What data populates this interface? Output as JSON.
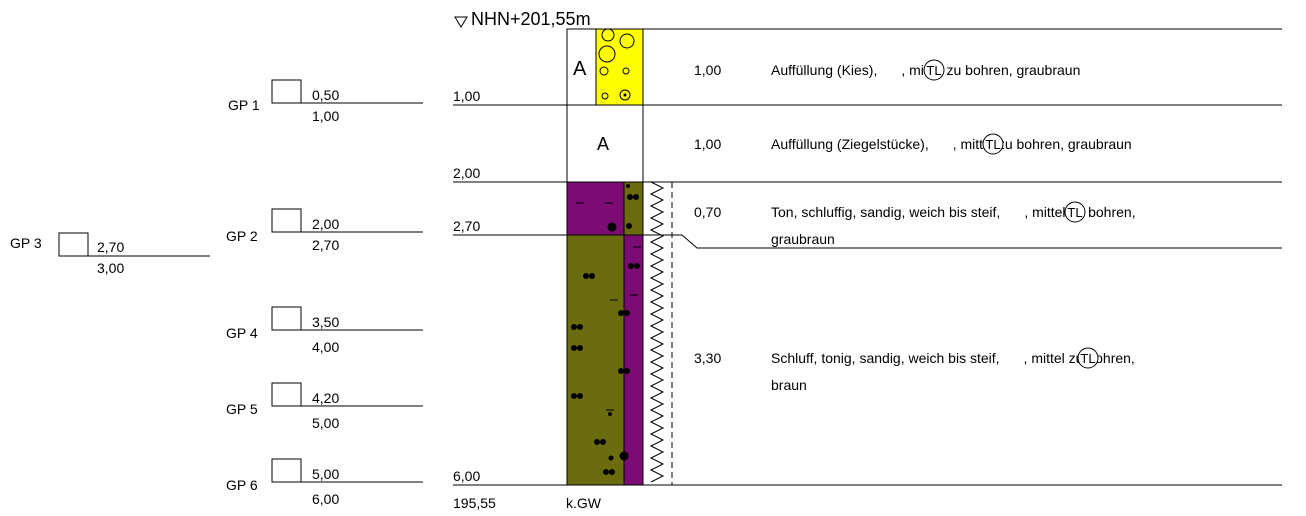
{
  "header": {
    "elevation_label": "NHN+201,55m"
  },
  "depth_marks": [
    "1,00",
    "2,00",
    "2,70",
    "6,00"
  ],
  "bottom_elevation": "195,55",
  "groundwater_note": "k.GW",
  "samples": [
    {
      "name": "GP 1",
      "top": "0,50",
      "bottom": "1,00"
    },
    {
      "name": "GP 2",
      "top": "2,00",
      "bottom": "2,70"
    },
    {
      "name": "GP 3",
      "top": "2,70",
      "bottom": "3,00"
    },
    {
      "name": "GP 4",
      "top": "3,50",
      "bottom": "4,00"
    },
    {
      "name": "GP 5",
      "top": "4,20",
      "bottom": "5,00"
    },
    {
      "name": "GP 6",
      "top": "5,00",
      "bottom": "6,00"
    }
  ],
  "layers": [
    {
      "thickness": "1,00",
      "symbol": "A",
      "desc_before": "Auffüllung (Kies),",
      "badge": "TL",
      "desc_after": ", mittel zu bohren, graubraun",
      "desc_line2": "",
      "fill": "#ffff00"
    },
    {
      "thickness": "1,00",
      "symbol": "A",
      "desc_before": "Auffüllung (Ziegelstücke),",
      "badge": "TL",
      "desc_after": ", mittel zu bohren, graubraun",
      "desc_line2": "",
      "fill": "#ffffff"
    },
    {
      "thickness": "0,70",
      "symbol": "",
      "desc_before": "Ton, schluffig, sandig, weich bis steif,",
      "badge": "TL",
      "desc_after": ", mittel zu bohren,",
      "desc_line2": "graubraun",
      "fill": "#7a0c74"
    },
    {
      "thickness": "3,30",
      "symbol": "",
      "desc_before": "Schluff, tonig, sandig, weich bis steif,",
      "badge": "TL",
      "desc_after": ", mittel zu bohren,",
      "desc_line2": "braun",
      "fill": "#6b6b10"
    }
  ]
}
